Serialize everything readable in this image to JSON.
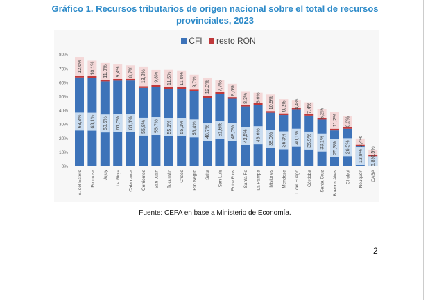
{
  "title": "Gráfico 1. Recursos tributarios de origen nacional sobre el total de recursos provinciales, 2023",
  "caption": "Fuente: CEPA en base a Ministerio de Economía.",
  "page_number": "2",
  "chart_data": {
    "type": "bar",
    "stacked": true,
    "title": "Gráfico 1. Recursos tributarios de origen nacional sobre el total de recursos provinciales, 2023",
    "categories": [
      "S. del Estero",
      "Formosa",
      "Jujuy",
      "La Rioja",
      "Catamarca",
      "Corrientes",
      "San Juan",
      "Tucumán",
      "Chaco",
      "Río Negro",
      "Salta",
      "San Luis",
      "Entre Ríos",
      "Santa Fe",
      "La Pampa",
      "Misiones",
      "Mendoza",
      "T. del Fuego",
      "Córdoba",
      "Santa Cruz",
      "Buenos Aires",
      "Chubut",
      "Neuquén",
      "CABA"
    ],
    "series": [
      {
        "name": "CFI",
        "color": "#3d73b9",
        "values": [
          63.3,
          63.1,
          60.5,
          61.0,
          61.1,
          55.8,
          56.7,
          55.1,
          55.1,
          53.4,
          48.7,
          51.6,
          48.0,
          42.5,
          43.6,
          38.0,
          36.3,
          40.1,
          35.9,
          33.1,
          25.3,
          26.5,
          13.9,
          6.8
        ]
      },
      {
        "name": "resto RON",
        "color": "#c0393b",
        "values": [
          12.6,
          10.1,
          11.0,
          9.4,
          8.7,
          13.2,
          9.8,
          11.5,
          11.0,
          9.7,
          12.3,
          7.7,
          8.6,
          8.3,
          6.6,
          10.9,
          9.2,
          4.4,
          7.4,
          5.2,
          11.2,
          6.6,
          3.4,
          2.5
        ]
      }
    ],
    "data_labels": {
      "CFI": [
        "63,3%",
        "63,1%",
        "60,5%",
        "61,0%",
        "61,1%",
        "55,8%",
        "56,7%",
        "55,1%",
        "55,1%",
        "53,4%",
        "48,7%",
        "51,6%",
        "48,0%",
        "42,5%",
        "43,6%",
        "38,0%",
        "36,3%",
        "40,1%",
        "35,9%",
        "33,1%",
        "25,3%",
        "26,5%",
        "13,9%",
        "6,8%"
      ],
      "resto RON": [
        "12,6%",
        "10,1%",
        "11,0%",
        "9,4%",
        "8,7%",
        "13,2%",
        "9,8%",
        "11,5%",
        "11,0%",
        "9,7%",
        "12,3%",
        "7,7%",
        "8,6%",
        "8,3%",
        "6,6%",
        "10,9%",
        "9,2%",
        "4,4%",
        "7,4%",
        "5,2%",
        "11,2%",
        "6,6%",
        "3,4%",
        "2,5%"
      ]
    },
    "ylim": [
      0,
      80
    ],
    "yticks": [
      "0%",
      "10%",
      "20%",
      "30%",
      "40%",
      "50%",
      "60%",
      "70%",
      "80%"
    ],
    "legend": "top",
    "grid": false
  }
}
